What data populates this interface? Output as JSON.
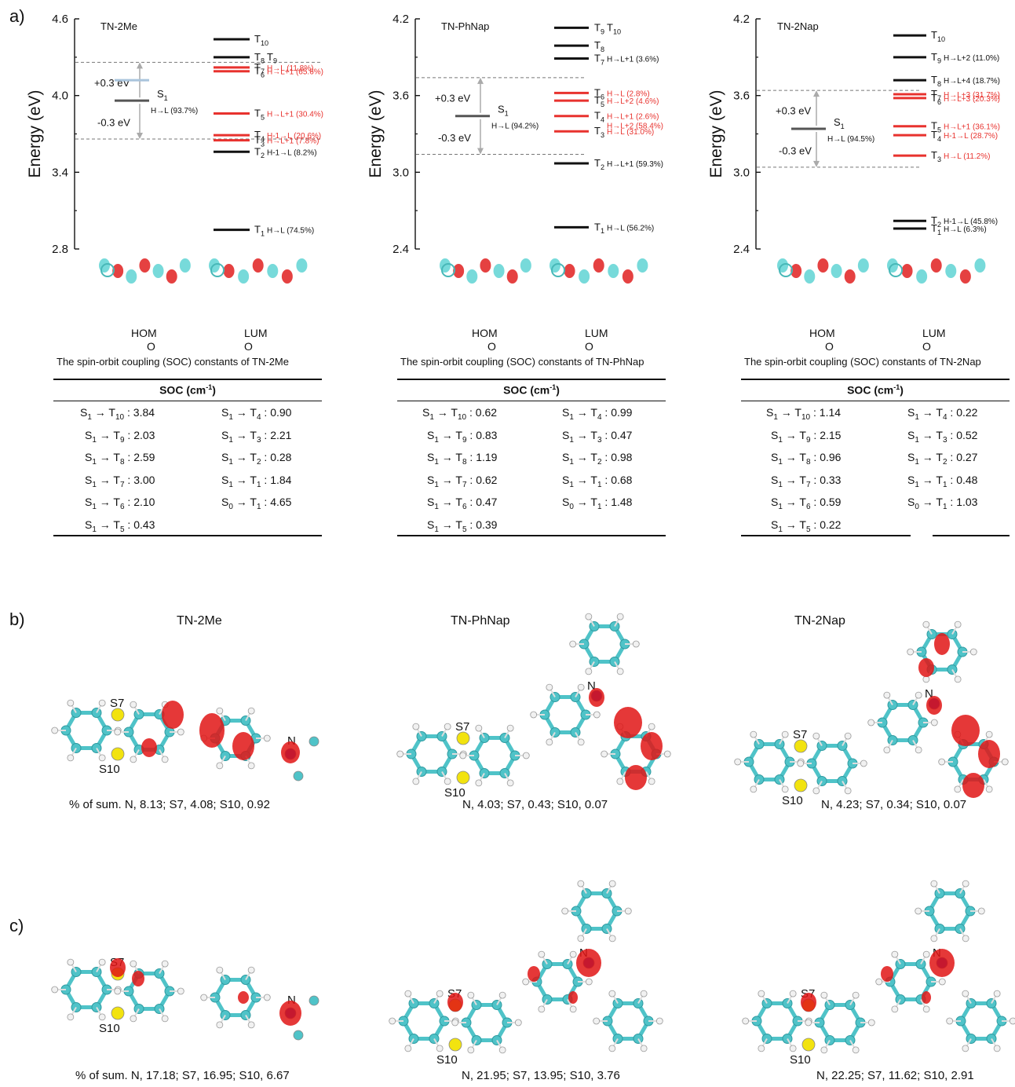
{
  "panel_labels": {
    "a": "a)",
    "b": "b)",
    "c": "c)"
  },
  "charts": [
    {
      "name": "TN-2Me",
      "ylabel": "Energy (eV)",
      "ticks": [
        "4.6",
        "4.0",
        "3.4",
        "2.8"
      ],
      "ylim": [
        2.8,
        4.6
      ],
      "s1": {
        "main": "S",
        "sub": "1",
        "contrib": "H→L (93.7%)",
        "energy": 3.96
      },
      "window_up": "+0.3 eV",
      "window_down": "-0.3 eV",
      "levels": [
        {
          "main": "T",
          "sub": "10",
          "contrib": "",
          "color": "black"
        },
        {
          "main": "T",
          "sub": "8",
          "extra": "T",
          "extra_sub": "9",
          "contrib": "",
          "color": "black"
        },
        {
          "main": "T",
          "sub": "7",
          "contrib": "H→L (11.8%)",
          "color": "red"
        },
        {
          "main": "T",
          "sub": "6",
          "contrib": "H→L+1 (65.6%)",
          "color": "red"
        },
        {
          "main": "T",
          "sub": "5",
          "contrib": "H→L+1 (30.4%)",
          "color": "red"
        },
        {
          "main": "T",
          "sub": "4",
          "contrib": "H-1→L (20.6%)",
          "color": "red"
        },
        {
          "main": "T",
          "sub": "3",
          "contrib": "H→L+1 (7.8%)",
          "color": "red"
        },
        {
          "main": "T",
          "sub": "2",
          "contrib": "H-1→L (8.2%)",
          "color": "black"
        },
        {
          "main": "T",
          "sub": "1",
          "contrib": "H→L (74.5%)",
          "color": "black"
        }
      ],
      "orbitals": {
        "homo": "HOMO",
        "lumo": "LUMO"
      },
      "soc_caption": "The spin-orbit coupling (SOC) constants of TN-2Me",
      "soc_header": "SOC (cm",
      "soc_header_sup": "-1",
      "soc_left": [
        {
          "from": "1",
          "to": "10",
          "value": "3.84",
          "s": "S"
        },
        {
          "from": "1",
          "to": "9",
          "value": "2.03",
          "s": "S"
        },
        {
          "from": "1",
          "to": "8",
          "value": "2.59",
          "s": "S"
        },
        {
          "from": "1",
          "to": "7",
          "value": "3.00",
          "s": "S"
        },
        {
          "from": "1",
          "to": "6",
          "value": "2.10",
          "s": "S"
        },
        {
          "from": "1",
          "to": "5",
          "value": "0.43",
          "s": "S"
        }
      ],
      "soc_right": [
        {
          "from": "1",
          "to": "4",
          "value": "0.90",
          "s": "S"
        },
        {
          "from": "1",
          "to": "3",
          "value": "2.21",
          "s": "S"
        },
        {
          "from": "1",
          "to": "2",
          "value": "0.28",
          "s": "S"
        },
        {
          "from": "1",
          "to": "1",
          "value": "1.84",
          "s": "S"
        },
        {
          "from": "0",
          "to": "1",
          "value": "4.65",
          "s": "S"
        }
      ]
    },
    {
      "name": "TN-PhNap",
      "ylabel": "Energy (eV)",
      "ticks": [
        "4.2",
        "3.6",
        "3.0",
        "2.4"
      ],
      "ylim": [
        2.4,
        4.2
      ],
      "s1": {
        "main": "S",
        "sub": "1",
        "contrib": "H→L (94.2%)",
        "energy": 3.44
      },
      "window_up": "+0.3 eV",
      "window_down": "-0.3 eV",
      "levels": [
        {
          "main": "T",
          "sub": "9",
          "extra": "T",
          "extra_sub": "10",
          "contrib": "",
          "color": "black"
        },
        {
          "main": "T",
          "sub": "8",
          "contrib": "",
          "color": "black"
        },
        {
          "main": "T",
          "sub": "7",
          "contrib": "H→L+1 (3.6%)",
          "color": "black"
        },
        {
          "main": "T",
          "sub": "6",
          "contrib": "H→L (2.8%)",
          "color": "red"
        },
        {
          "main": "T",
          "sub": "5",
          "contrib": "H→L+2 (4.6%)",
          "color": "red"
        },
        {
          "main": "T",
          "sub": "4",
          "contrib": "H→L+1 (2.6%)",
          "contrib2": "H→L+2 (58.4%)",
          "color": "red"
        },
        {
          "main": "T",
          "sub": "3",
          "contrib": "H→L (31.0%)",
          "color": "red"
        },
        {
          "main": "T",
          "sub": "2",
          "contrib": "H→L+1 (59.3%)",
          "color": "black"
        },
        {
          "main": "T",
          "sub": "1",
          "contrib": "H→L (56.2%)",
          "color": "black"
        }
      ],
      "orbitals": {
        "homo": "HOMO",
        "lumo": "LUMO"
      },
      "soc_caption": "The spin-orbit coupling (SOC) constants of TN-PhNap",
      "soc_header": "SOC (cm",
      "soc_header_sup": "-1",
      "soc_left": [
        {
          "from": "1",
          "to": "10",
          "value": "0.62",
          "s": "S"
        },
        {
          "from": "1",
          "to": "9",
          "value": "0.83",
          "s": "S"
        },
        {
          "from": "1",
          "to": "8",
          "value": "1.19",
          "s": "S"
        },
        {
          "from": "1",
          "to": "7",
          "value": "0.62",
          "s": "S"
        },
        {
          "from": "1",
          "to": "6",
          "value": "0.47",
          "s": "S"
        },
        {
          "from": "1",
          "to": "5",
          "value": "0.39",
          "s": "S"
        }
      ],
      "soc_right": [
        {
          "from": "1",
          "to": "4",
          "value": "0.99",
          "s": "S"
        },
        {
          "from": "1",
          "to": "3",
          "value": "0.47",
          "s": "S"
        },
        {
          "from": "1",
          "to": "2",
          "value": "0.98",
          "s": "S"
        },
        {
          "from": "1",
          "to": "1",
          "value": "0.68",
          "s": "S"
        },
        {
          "from": "0",
          "to": "1",
          "value": "1.48",
          "s": "S"
        }
      ]
    },
    {
      "name": "TN-2Nap",
      "ylabel": "Energy (eV)",
      "ticks": [
        "4.2",
        "3.6",
        "3.0",
        "2.4"
      ],
      "ylim": [
        2.4,
        4.2
      ],
      "s1": {
        "main": "S",
        "sub": "1",
        "contrib": "H→L (94.5%)",
        "energy": 3.34
      },
      "window_up": "+0.3 eV",
      "window_down": "-0.3 eV",
      "levels": [
        {
          "main": "T",
          "sub": "10",
          "contrib": "",
          "color": "black"
        },
        {
          "main": "T",
          "sub": "9",
          "contrib": "H→L+2 (11.0%)",
          "color": "black"
        },
        {
          "main": "T",
          "sub": "8",
          "contrib": "H→L+4 (18.7%)",
          "color": "black"
        },
        {
          "main": "T",
          "sub": "7",
          "contrib": "H→L+3 (31.7%)",
          "color": "red"
        },
        {
          "main": "T",
          "sub": "6",
          "contrib": "H→L+3 (20.3%)",
          "color": "red"
        },
        {
          "main": "T",
          "sub": "5",
          "contrib": "H→L+1 (36.1%)",
          "color": "red"
        },
        {
          "main": "T",
          "sub": "4",
          "contrib": "H-1→L (28.7%)",
          "color": "red"
        },
        {
          "main": "T",
          "sub": "3",
          "contrib": "H→L (11.2%)",
          "color": "red"
        },
        {
          "main": "T",
          "sub": "2",
          "contrib": "H-1→L (45.8%)",
          "color": "black"
        },
        {
          "main": "T",
          "sub": "1",
          "contrib": "H→L (6.3%)",
          "color": "black"
        }
      ],
      "orbitals": {
        "homo": "HOMO",
        "lumo": "LUMO"
      },
      "soc_caption": "The spin-orbit coupling (SOC) constants of TN-2Nap",
      "soc_header": "SOC (cm",
      "soc_header_sup": "-1",
      "soc_left": [
        {
          "from": "1",
          "to": "10",
          "value": "1.14",
          "s": "S"
        },
        {
          "from": "1",
          "to": "9",
          "value": "2.15",
          "s": "S"
        },
        {
          "from": "1",
          "to": "8",
          "value": "0.96",
          "s": "S"
        },
        {
          "from": "1",
          "to": "7",
          "value": "0.33",
          "s": "S"
        },
        {
          "from": "1",
          "to": "6",
          "value": "0.59",
          "s": "S"
        },
        {
          "from": "1",
          "to": "5",
          "value": "0.22",
          "s": "S"
        }
      ],
      "soc_right": [
        {
          "from": "1",
          "to": "4",
          "value": "0.22",
          "s": "S"
        },
        {
          "from": "1",
          "to": "3",
          "value": "0.52",
          "s": "S"
        },
        {
          "from": "1",
          "to": "2",
          "value": "0.27",
          "s": "S"
        },
        {
          "from": "1",
          "to": "1",
          "value": "0.48",
          "s": "S"
        },
        {
          "from": "0",
          "to": "1",
          "value": "1.03",
          "s": "S"
        }
      ]
    }
  ],
  "chart_data": [
    {
      "type": "scatter",
      "title": "TN-2Me",
      "ylabel": "Energy (eV)",
      "ylim": [
        2.8,
        4.6
      ],
      "series": [
        {
          "values": [
            4.44,
            4.3,
            4.22,
            4.19,
            3.86,
            3.69,
            3.65,
            3.56,
            2.95
          ]
        }
      ]
    },
    {
      "type": "scatter",
      "title": "TN-PhNap",
      "ylabel": "Energy (eV)",
      "ylim": [
        2.4,
        4.2
      ],
      "series": [
        {
          "values": [
            4.13,
            3.99,
            3.89,
            3.62,
            3.56,
            3.44,
            3.32,
            3.07,
            2.57
          ]
        }
      ]
    },
    {
      "type": "scatter",
      "title": "TN-2Nap",
      "ylabel": "Energy (eV)",
      "ylim": [
        2.4,
        4.2
      ],
      "series": [
        {
          "values": [
            4.07,
            3.9,
            3.72,
            3.61,
            3.58,
            3.36,
            3.29,
            3.13,
            2.62,
            2.56
          ]
        }
      ]
    }
  ],
  "section_b": {
    "titles": [
      "TN-2Me",
      "TN-PhNap",
      "TN-2Nap"
    ],
    "captions": [
      "% of sum. N, 8.13; S7, 4.08; S10, 0.92",
      "N, 4.03; S7, 0.43; S10, 0.07",
      "N, 4.23; S7, 0.34; S10, 0.07"
    ]
  },
  "section_c": {
    "captions": [
      "% of sum. N, 17.18; S7, 16.95; S10, 6.67",
      "N, 21.95; S7, 13.95; S10, 3.76",
      "N, 22.25; S7, 11.62; S10, 2.91"
    ]
  },
  "atoms": {
    "n": "N",
    "s7": "S7",
    "s10": "S10"
  }
}
